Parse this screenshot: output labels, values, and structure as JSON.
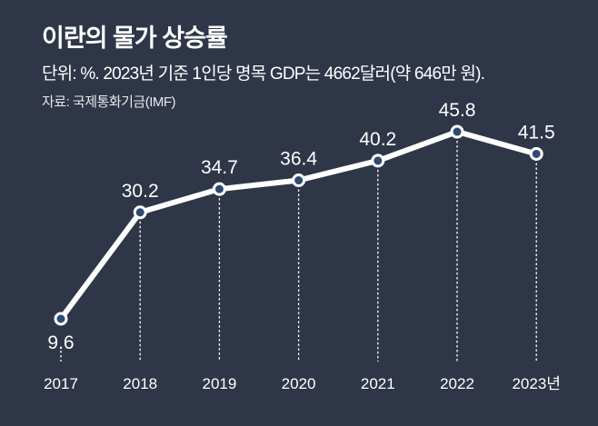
{
  "chart_data": {
    "type": "line",
    "title": "이란의 물가 상승률",
    "subtitle": "단위: %. 2023년 기준 1인당 명목 GDP는 4662달러(약 646만 원).",
    "source": "자료: 국제통화기금(IMF)",
    "categories": [
      "2017",
      "2018",
      "2019",
      "2020",
      "2021",
      "2022",
      "2023년"
    ],
    "series": [
      {
        "name": "물가 상승률",
        "values": [
          9.6,
          30.2,
          34.7,
          36.4,
          40.2,
          45.8,
          41.5
        ]
      }
    ],
    "labels": [
      "9.6",
      "30.2",
      "34.7",
      "36.4",
      "40.2",
      "45.8",
      "41.5"
    ],
    "xlabel": "",
    "ylabel": "%",
    "grid": false,
    "colors": {
      "background": "#2f3647",
      "line": "#ffffff",
      "marker_fill": "#2f4a72"
    }
  }
}
